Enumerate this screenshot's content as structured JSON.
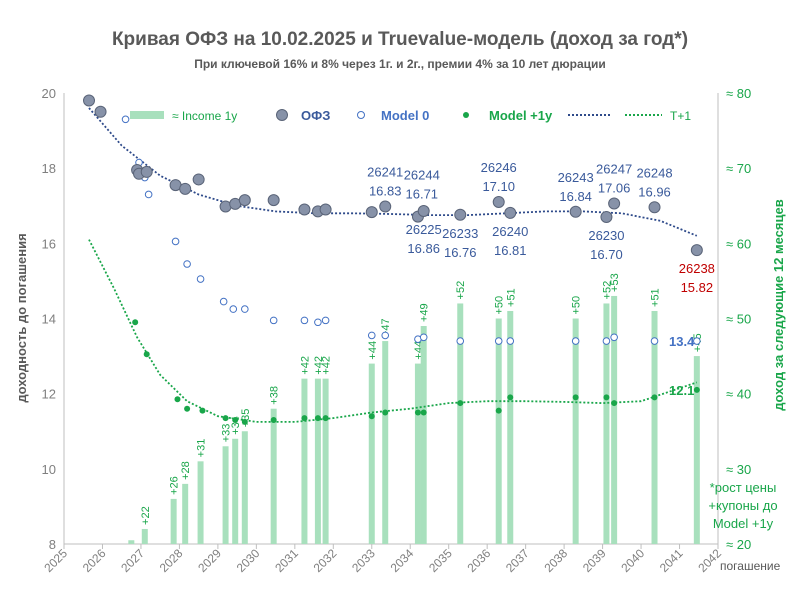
{
  "chart_data": {
    "type": "scatter",
    "title": "Кривая ОФЗ на 10.02.2025 и Truevalue-модель (доход за год*)",
    "subtitle": "При ключевой 16% и 8% через 1г. и 2г., премии 4% за 10 лет дюрации",
    "xlabel": "погашение",
    "ylabel": "доходность до погашения",
    "y2label": "доход за следующие 12 месяцев",
    "footnote": [
      "*рост цены",
      "+купоны до",
      "Model +1y"
    ],
    "xlim": [
      2025,
      2042
    ],
    "ylim": [
      8,
      20
    ],
    "y2lim": [
      20,
      80
    ],
    "x_ticks": [
      "2025",
      "2026",
      "2027",
      "2028",
      "2029",
      "2030",
      "2031",
      "2032",
      "2033",
      "2034",
      "2035",
      "2036",
      "2037",
      "2038",
      "2039",
      "2040",
      "2041",
      "2042"
    ],
    "y_ticks": [
      "8",
      "10",
      "12",
      "14",
      "16",
      "18",
      "20"
    ],
    "y2_ticks": [
      "≈ 20",
      "≈ 30",
      "≈ 40",
      "≈ 50",
      "≈ 60",
      "≈ 70",
      "≈ 80"
    ],
    "grid": false,
    "legend_position": "top",
    "colors": {
      "ofz": "#8792a8",
      "model0": "#4472c4",
      "model1": "#19a64a",
      "income": "#a8e0bd",
      "title": "#595959",
      "red": "#c00000"
    },
    "legend": {
      "income": "≈ Income 1y",
      "ofz": "ОФЗ",
      "model0": "Model 0",
      "model1": "Model +1y",
      "trend": "T+1"
    },
    "ofz": [
      {
        "x": 2025.65,
        "y": 19.8
      },
      {
        "x": 2025.95,
        "y": 19.5
      },
      {
        "x": 2026.9,
        "y": 17.95
      },
      {
        "x": 2026.95,
        "y": 17.85
      },
      {
        "x": 2027.15,
        "y": 17.9
      },
      {
        "x": 2027.9,
        "y": 17.55
      },
      {
        "x": 2028.15,
        "y": 17.45
      },
      {
        "x": 2028.5,
        "y": 17.7
      },
      {
        "x": 2029.2,
        "y": 16.98
      },
      {
        "x": 2029.45,
        "y": 17.05
      },
      {
        "x": 2029.7,
        "y": 17.15
      },
      {
        "x": 2030.45,
        "y": 17.15
      },
      {
        "x": 2031.25,
        "y": 16.9
      },
      {
        "x": 2031.6,
        "y": 16.85
      },
      {
        "x": 2031.8,
        "y": 16.9
      },
      {
        "x": 2033.0,
        "y": 16.83
      },
      {
        "x": 2033.35,
        "y": 16.98
      },
      {
        "x": 2034.2,
        "y": 16.71
      },
      {
        "x": 2034.35,
        "y": 16.86
      },
      {
        "x": 2035.3,
        "y": 16.76
      },
      {
        "x": 2036.3,
        "y": 17.1
      },
      {
        "x": 2036.6,
        "y": 16.81
      },
      {
        "x": 2038.3,
        "y": 16.84
      },
      {
        "x": 2039.1,
        "y": 16.7
      },
      {
        "x": 2039.3,
        "y": 17.06
      },
      {
        "x": 2040.35,
        "y": 16.96
      },
      {
        "x": 2041.45,
        "y": 15.82
      }
    ],
    "model0": [
      {
        "x": 2026.6,
        "y": 19.3
      },
      {
        "x": 2026.95,
        "y": 18.15
      },
      {
        "x": 2027.1,
        "y": 17.75
      },
      {
        "x": 2027.2,
        "y": 17.3
      },
      {
        "x": 2027.9,
        "y": 16.05
      },
      {
        "x": 2028.2,
        "y": 15.45
      },
      {
        "x": 2028.55,
        "y": 15.05
      },
      {
        "x": 2029.15,
        "y": 14.45
      },
      {
        "x": 2029.4,
        "y": 14.25
      },
      {
        "x": 2029.7,
        "y": 14.25
      },
      {
        "x": 2030.45,
        "y": 13.95
      },
      {
        "x": 2031.25,
        "y": 13.95
      },
      {
        "x": 2031.6,
        "y": 13.9
      },
      {
        "x": 2031.8,
        "y": 13.95
      },
      {
        "x": 2033.0,
        "y": 13.55
      },
      {
        "x": 2033.35,
        "y": 13.55
      },
      {
        "x": 2034.2,
        "y": 13.45
      },
      {
        "x": 2034.35,
        "y": 13.5
      },
      {
        "x": 2035.3,
        "y": 13.4
      },
      {
        "x": 2036.3,
        "y": 13.4
      },
      {
        "x": 2036.6,
        "y": 13.4
      },
      {
        "x": 2038.3,
        "y": 13.4
      },
      {
        "x": 2039.1,
        "y": 13.4
      },
      {
        "x": 2039.3,
        "y": 13.5
      },
      {
        "x": 2040.35,
        "y": 13.4
      },
      {
        "x": 2041.45,
        "y": 13.4
      }
    ],
    "model1": [
      {
        "x": 2026.85,
        "y": 13.9
      },
      {
        "x": 2027.15,
        "y": 13.05
      },
      {
        "x": 2027.95,
        "y": 11.85
      },
      {
        "x": 2028.2,
        "y": 11.6
      },
      {
        "x": 2028.6,
        "y": 11.55
      },
      {
        "x": 2029.2,
        "y": 11.35
      },
      {
        "x": 2029.45,
        "y": 11.3
      },
      {
        "x": 2029.7,
        "y": 11.25
      },
      {
        "x": 2030.45,
        "y": 11.3
      },
      {
        "x": 2031.25,
        "y": 11.35
      },
      {
        "x": 2031.6,
        "y": 11.35
      },
      {
        "x": 2031.8,
        "y": 11.35
      },
      {
        "x": 2033.0,
        "y": 11.4
      },
      {
        "x": 2033.35,
        "y": 11.5
      },
      {
        "x": 2034.2,
        "y": 11.5
      },
      {
        "x": 2034.35,
        "y": 11.5
      },
      {
        "x": 2035.3,
        "y": 11.75
      },
      {
        "x": 2036.3,
        "y": 11.55
      },
      {
        "x": 2036.6,
        "y": 11.9
      },
      {
        "x": 2038.3,
        "y": 11.9
      },
      {
        "x": 2039.1,
        "y": 11.9
      },
      {
        "x": 2039.3,
        "y": 11.75
      },
      {
        "x": 2040.35,
        "y": 11.9
      },
      {
        "x": 2041.45,
        "y": 12.1
      }
    ],
    "income": [
      {
        "x": 2026.75,
        "y2": 20.5,
        "label": ""
      },
      {
        "x": 2027.1,
        "y2": 22,
        "label": "+22"
      },
      {
        "x": 2027.85,
        "y2": 26,
        "label": "+26"
      },
      {
        "x": 2028.15,
        "y2": 28,
        "label": "+28"
      },
      {
        "x": 2028.55,
        "y2": 31,
        "label": "+31"
      },
      {
        "x": 2029.2,
        "y2": 33,
        "label": "+33"
      },
      {
        "x": 2029.45,
        "y2": 34,
        "label": "+34"
      },
      {
        "x": 2029.7,
        "y2": 35,
        "label": "+35"
      },
      {
        "x": 2030.45,
        "y2": 38,
        "label": "+38"
      },
      {
        "x": 2031.25,
        "y2": 42,
        "label": "+42"
      },
      {
        "x": 2031.6,
        "y2": 42,
        "label": "+42"
      },
      {
        "x": 2031.8,
        "y2": 42,
        "label": "+42"
      },
      {
        "x": 2033.0,
        "y2": 44,
        "label": "+44"
      },
      {
        "x": 2033.35,
        "y2": 47,
        "label": "+47"
      },
      {
        "x": 2034.2,
        "y2": 44,
        "label": "+44"
      },
      {
        "x": 2034.35,
        "y2": 49,
        "label": "+49"
      },
      {
        "x": 2035.3,
        "y2": 52,
        "label": "+52"
      },
      {
        "x": 2036.3,
        "y2": 50,
        "label": "+50"
      },
      {
        "x": 2036.6,
        "y2": 51,
        "label": "+51"
      },
      {
        "x": 2038.3,
        "y2": 50,
        "label": "+50"
      },
      {
        "x": 2039.1,
        "y2": 52,
        "label": "+52"
      },
      {
        "x": 2039.3,
        "y2": 53,
        "label": "+53"
      },
      {
        "x": 2040.35,
        "y2": 51,
        "label": "+51"
      },
      {
        "x": 2041.45,
        "y2": 45,
        "label": "+45"
      }
    ],
    "trend_ofz": [
      {
        "x": 2025.65,
        "y": 19.6
      },
      {
        "x": 2026.5,
        "y": 18.6
      },
      {
        "x": 2027.5,
        "y": 17.8
      },
      {
        "x": 2028.5,
        "y": 17.3
      },
      {
        "x": 2029.5,
        "y": 17.0
      },
      {
        "x": 2030.5,
        "y": 16.85
      },
      {
        "x": 2031.5,
        "y": 16.8
      },
      {
        "x": 2032.5,
        "y": 16.8
      },
      {
        "x": 2033.5,
        "y": 16.78
      },
      {
        "x": 2034.5,
        "y": 16.75
      },
      {
        "x": 2035.5,
        "y": 16.75
      },
      {
        "x": 2036.5,
        "y": 16.8
      },
      {
        "x": 2037.5,
        "y": 16.85
      },
      {
        "x": 2038.5,
        "y": 16.85
      },
      {
        "x": 2039.5,
        "y": 16.8
      },
      {
        "x": 2040.5,
        "y": 16.6
      },
      {
        "x": 2041.45,
        "y": 16.2
      }
    ],
    "trend_t1": [
      {
        "x": 2025.65,
        "y": 16.1
      },
      {
        "x": 2026.3,
        "y": 14.8
      },
      {
        "x": 2026.9,
        "y": 13.5
      },
      {
        "x": 2027.5,
        "y": 12.5
      },
      {
        "x": 2028.2,
        "y": 11.8
      },
      {
        "x": 2029.0,
        "y": 11.4
      },
      {
        "x": 2030.0,
        "y": 11.25
      },
      {
        "x": 2031.0,
        "y": 11.25
      },
      {
        "x": 2032.0,
        "y": 11.35
      },
      {
        "x": 2033.0,
        "y": 11.5
      },
      {
        "x": 2034.0,
        "y": 11.6
      },
      {
        "x": 2035.0,
        "y": 11.75
      },
      {
        "x": 2036.0,
        "y": 11.8
      },
      {
        "x": 2037.0,
        "y": 11.8
      },
      {
        "x": 2038.0,
        "y": 11.78
      },
      {
        "x": 2039.0,
        "y": 11.75
      },
      {
        "x": 2040.0,
        "y": 11.8
      },
      {
        "x": 2041.45,
        "y": 12.3
      }
    ],
    "annotations": [
      {
        "x": 2033.35,
        "y": 16.98,
        "pos": "above",
        "text": [
          "26241",
          "16.83"
        ],
        "color": "#3a5a9b"
      },
      {
        "x": 2034.3,
        "y": 16.9,
        "pos": "above",
        "text": [
          "26244",
          "16.71"
        ],
        "color": "#3a5a9b"
      },
      {
        "x": 2036.3,
        "y": 17.1,
        "pos": "above",
        "text": [
          "26246",
          "17.10"
        ],
        "color": "#3a5a9b"
      },
      {
        "x": 2038.3,
        "y": 16.84,
        "pos": "above",
        "text": [
          "26243",
          "16.84"
        ],
        "color": "#3a5a9b"
      },
      {
        "x": 2039.3,
        "y": 17.06,
        "pos": "above",
        "text": [
          "26247",
          "17.06"
        ],
        "color": "#3a5a9b"
      },
      {
        "x": 2040.35,
        "y": 16.96,
        "pos": "above",
        "text": [
          "26248",
          "16.96"
        ],
        "color": "#3a5a9b"
      },
      {
        "x": 2034.35,
        "y": 16.86,
        "pos": "below",
        "text": [
          "26225",
          "16.86"
        ],
        "color": "#3a5a9b"
      },
      {
        "x": 2035.3,
        "y": 16.76,
        "pos": "below",
        "text": [
          "26233",
          "16.76"
        ],
        "color": "#3a5a9b"
      },
      {
        "x": 2036.6,
        "y": 16.81,
        "pos": "below",
        "text": [
          "26240",
          "16.81"
        ],
        "color": "#3a5a9b"
      },
      {
        "x": 2039.1,
        "y": 16.7,
        "pos": "below",
        "text": [
          "26230",
          "16.70"
        ],
        "color": "#3a5a9b"
      },
      {
        "x": 2041.45,
        "y": 15.82,
        "pos": "below",
        "text": [
          "26238",
          "15.82"
        ],
        "color": "#c00000"
      }
    ],
    "end_labels": [
      {
        "text": "13.4",
        "y": 13.4,
        "color": "#4472c4"
      },
      {
        "text": "12.1",
        "y": 12.1,
        "color": "#19a64a"
      }
    ]
  }
}
